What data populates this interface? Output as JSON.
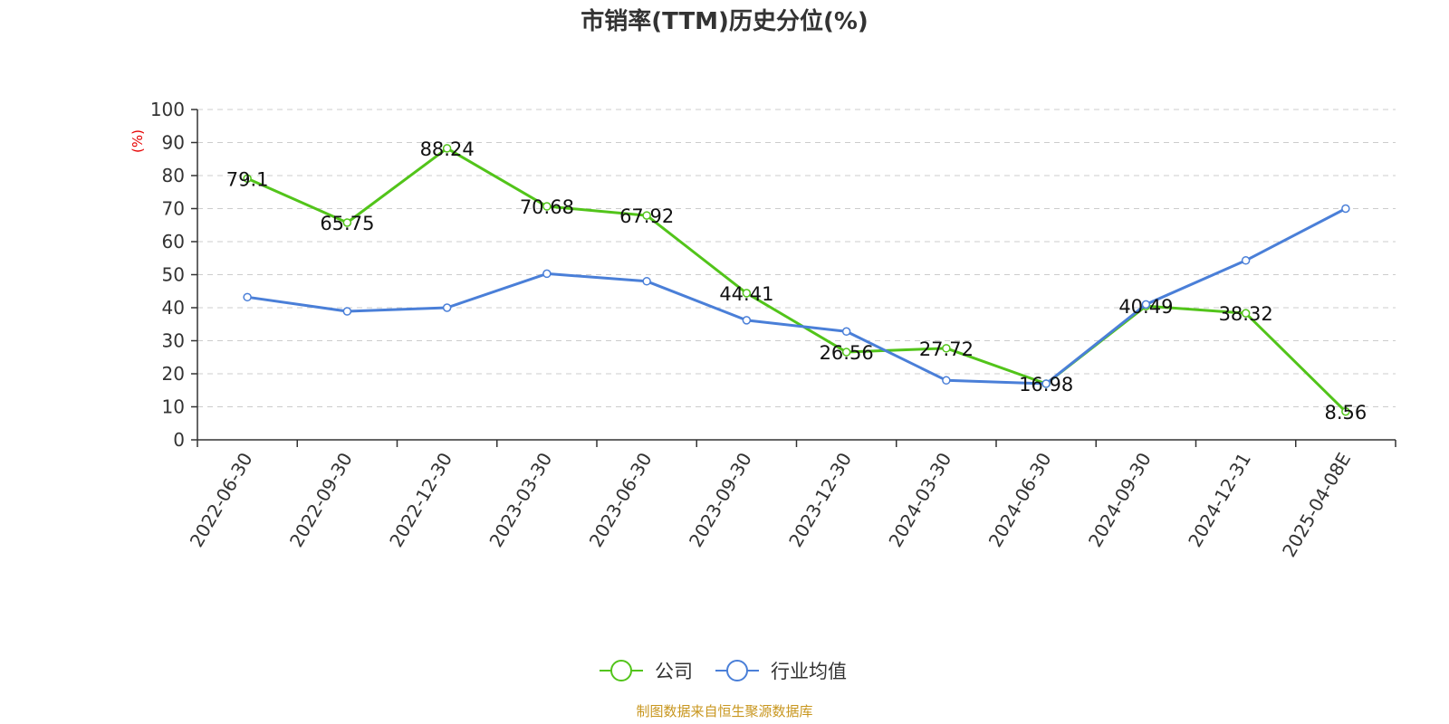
{
  "chart_data": {
    "type": "line",
    "title": "市销率(TTM)历史分位(%)",
    "ylabel": "(%)",
    "ylim": [
      0,
      100
    ],
    "yticks": [
      0,
      10,
      20,
      30,
      40,
      50,
      60,
      70,
      80,
      90,
      100
    ],
    "grid": true,
    "legend_position": "bottom-center",
    "categories": [
      "2022-06-30",
      "2022-09-30",
      "2022-12-30",
      "2023-03-30",
      "2023-06-30",
      "2023-09-30",
      "2023-12-30",
      "2024-03-30",
      "2024-06-30",
      "2024-09-30",
      "2024-12-31",
      "2025-04-08E"
    ],
    "series": [
      {
        "name": "公司",
        "color": "#52c41a",
        "values": [
          79.1,
          65.75,
          88.24,
          70.68,
          67.92,
          44.41,
          26.56,
          27.72,
          16.98,
          40.49,
          38.32,
          8.56
        ],
        "labels": [
          "79.1",
          "65.75",
          "88.24",
          "70.68",
          "67.92",
          "44.41",
          "26.56",
          "27.72",
          "16.98",
          "40.49",
          "38.32",
          "8.56"
        ]
      },
      {
        "name": "行业均值",
        "color": "#4a7fd8",
        "values": [
          43.2,
          38.9,
          40.0,
          50.3,
          48.0,
          36.2,
          32.8,
          18.0,
          17.0,
          41.0,
          54.3,
          70.0
        ]
      }
    ]
  },
  "source": "制图数据来自恒生聚源数据库",
  "colors": {
    "ylabel": "#e60000",
    "source": "#c8961e",
    "axis": "#333333",
    "grid": "#cccccc"
  }
}
